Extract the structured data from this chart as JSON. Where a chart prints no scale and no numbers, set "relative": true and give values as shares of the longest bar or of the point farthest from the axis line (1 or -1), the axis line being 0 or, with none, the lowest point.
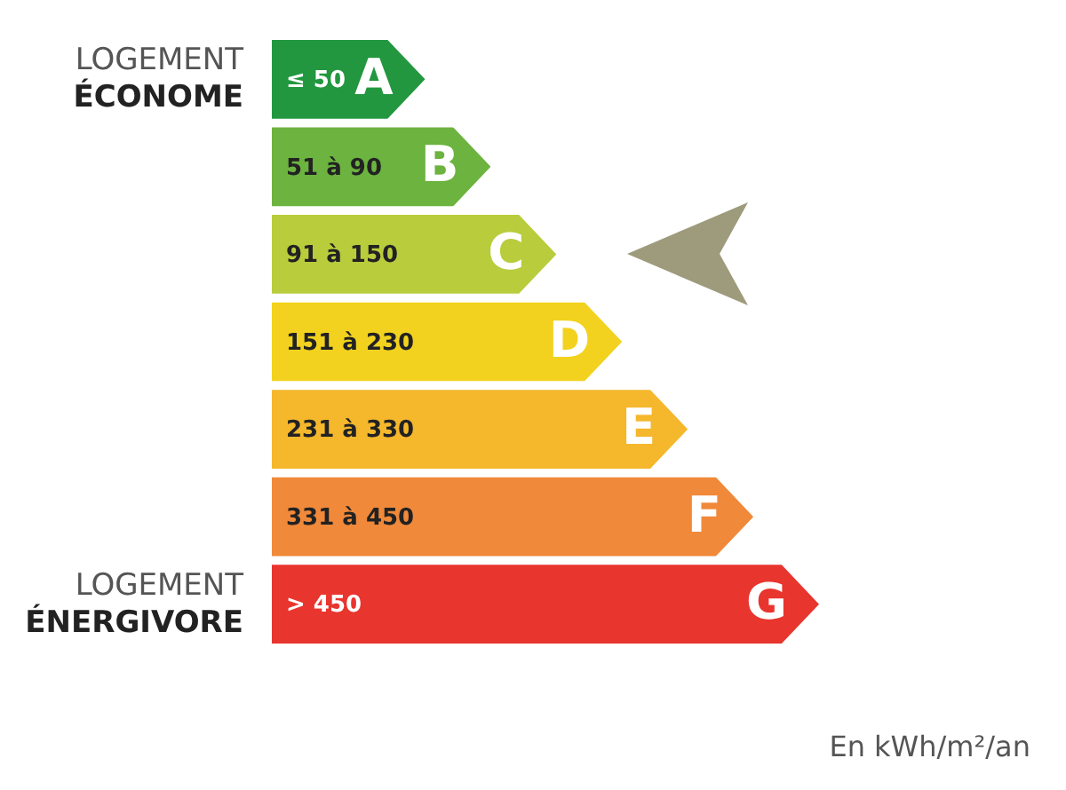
{
  "chart_data": {
    "type": "bar",
    "orientation": "horizontal",
    "relative": true,
    "categories": [
      "A",
      "B",
      "C",
      "D",
      "E",
      "F",
      "G"
    ],
    "values": [
      0.28,
      0.4,
      0.52,
      0.64,
      0.76,
      0.88,
      1
    ],
    "colors": [
      "#23973f",
      "#6cb33f",
      "#b9cc3c",
      "#f2d21e",
      "#f5b72c",
      "#f0893a",
      "#e8352e"
    ],
    "annotations": [
      "≤ 50",
      "51 à 90",
      "91 à 150",
      "151 à 230",
      "231 à 330",
      "331 à 450",
      "> 450",
      "LOGEMENT ÉCONOME",
      "LOGEMENT ÉNERGIVORE",
      "En kWh/m²/an"
    ],
    "legend": false
  }
}
